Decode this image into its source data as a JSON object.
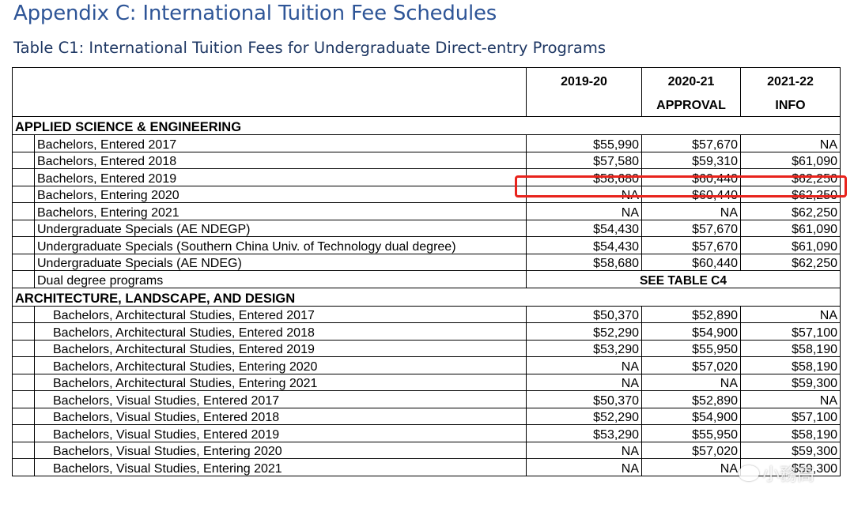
{
  "document": {
    "title": "Appendix C: International Tuition Fee Schedules",
    "table_caption": "Table C1: International Tuition Fees for Undergraduate Direct-entry Programs"
  },
  "header": {
    "col_2019": "2019-20",
    "col_2020_l1": "2020-21",
    "col_2020_l2": "APPROVAL",
    "col_2021_l1": "2021-22",
    "col_2021_l2": "INFO"
  },
  "sections": [
    {
      "name": "APPLIED SCIENCE & ENGINEERING",
      "rows": [
        {
          "program": "Bachelors, Entered 2017",
          "y2019": "$55,990",
          "y2020": "$57,670",
          "y2021": "NA"
        },
        {
          "program": "Bachelors, Entered 2018",
          "y2019": "$57,580",
          "y2020": "$59,310",
          "y2021": "$61,090"
        },
        {
          "program": "Bachelors, Entered 2019",
          "y2019": "$58,680",
          "y2020": "$60,440",
          "y2021": "$62,250"
        },
        {
          "program": "Bachelors, Entering 2020",
          "y2019": "NA",
          "y2020": "$60,440",
          "y2021": "$62,250"
        },
        {
          "program": "Bachelors, Entering 2021",
          "y2019": "NA",
          "y2020": "NA",
          "y2021": "$62,250"
        },
        {
          "program": "Undergraduate Specials (AE NDEGP)",
          "y2019": "$54,430",
          "y2020": "$57,670",
          "y2021": "$61,090"
        },
        {
          "program": "Undergraduate Specials (Southern China Univ. of Technology dual degree)",
          "y2019": "$54,430",
          "y2020": "$57,670",
          "y2021": "$61,090"
        },
        {
          "program": "Undergraduate Specials (AE NDEG)",
          "y2019": "$58,680",
          "y2020": "$60,440",
          "y2021": "$62,250"
        },
        {
          "program": "Dual degree programs",
          "note": "SEE TABLE C4"
        }
      ]
    },
    {
      "name": "ARCHITECTURE, LANDSCAPE, AND DESIGN",
      "rows": [
        {
          "program": "Bachelors, Architectural Studies, Entered 2017",
          "y2019": "$50,370",
          "y2020": "$52,890",
          "y2021": "NA"
        },
        {
          "program": "Bachelors, Architectural Studies, Entered 2018",
          "y2019": "$52,290",
          "y2020": "$54,900",
          "y2021": "$57,100"
        },
        {
          "program": "Bachelors, Architectural Studies, Entered 2019",
          "y2019": "$53,290",
          "y2020": "$55,950",
          "y2021": "$58,190"
        },
        {
          "program": "Bachelors, Architectural Studies, Entering 2020",
          "y2019": "NA",
          "y2020": "$57,020",
          "y2021": "$58,190"
        },
        {
          "program": "Bachelors, Architectural Studies, Entering 2021",
          "y2019": "NA",
          "y2020": "NA",
          "y2021": "$59,300"
        },
        {
          "program": "Bachelors, Visual Studies, Entered 2017",
          "y2019": "$50,370",
          "y2020": "$52,890",
          "y2021": "NA"
        },
        {
          "program": "Bachelors, Visual Studies, Entered 2018",
          "y2019": "$52,290",
          "y2020": "$54,900",
          "y2021": "$57,100"
        },
        {
          "program": "Bachelors, Visual Studies, Entered 2019",
          "y2019": "$53,290",
          "y2020": "$55,950",
          "y2021": "$58,190"
        },
        {
          "program": "Bachelors, Visual Studies, Entering 2020",
          "y2019": "NA",
          "y2020": "$57,020",
          "y2021": "$59,300"
        },
        {
          "program": "Bachelors, Visual Studies, Entering 2021",
          "y2019": "NA",
          "y2020": "NA",
          "y2021": "$59,300"
        }
      ]
    }
  ],
  "annotation": {
    "highlight_color": "#e8231c",
    "highlighted_row": "Bachelors, Entered 2019"
  },
  "watermark": {
    "text": "小務高"
  }
}
